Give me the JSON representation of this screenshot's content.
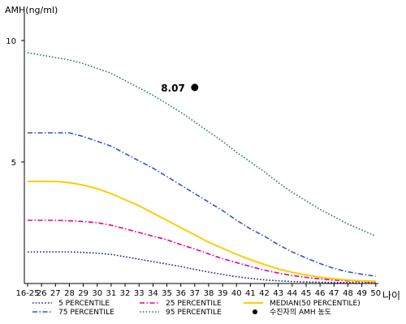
{
  "chart_data": {
    "type": "line",
    "ylabel": "AMH(ng/ml)",
    "xlabel": "나이",
    "ylim": [
      0,
      11
    ],
    "ytick_labels": [
      "5",
      "10"
    ],
    "yticks": [
      5,
      10
    ],
    "categories": [
      "16-25",
      "26",
      "27",
      "28",
      "29",
      "30",
      "31",
      "32",
      "33",
      "34",
      "35",
      "36",
      "37",
      "38",
      "39",
      "40",
      "41",
      "42",
      "43",
      "44",
      "45",
      "46",
      "47",
      "48",
      "49",
      "50"
    ],
    "series": [
      {
        "name": "5 PERCENTILE",
        "color": "#1a237e",
        "dash": "dotted",
        "values": [
          1.3,
          1.3,
          1.3,
          1.3,
          1.28,
          1.25,
          1.2,
          1.1,
          1.0,
          0.9,
          0.8,
          0.7,
          0.58,
          0.47,
          0.37,
          0.28,
          0.21,
          0.15,
          0.11,
          0.08,
          0.06,
          0.05,
          0.04,
          0.04,
          0.03,
          0.03
        ]
      },
      {
        "name": "25 PERCENTILE",
        "color": "#e3008c",
        "dash": "dashdot",
        "values": [
          2.6,
          2.6,
          2.6,
          2.58,
          2.55,
          2.5,
          2.4,
          2.25,
          2.1,
          1.95,
          1.8,
          1.6,
          1.42,
          1.22,
          1.02,
          0.86,
          0.7,
          0.55,
          0.43,
          0.33,
          0.25,
          0.19,
          0.14,
          0.11,
          0.09,
          0.07
        ]
      },
      {
        "name": "MEDIAN(50 PERCENTILE)",
        "color": "#ffcc00",
        "dash": "solid",
        "values": [
          4.2,
          4.2,
          4.2,
          4.15,
          4.05,
          3.9,
          3.7,
          3.45,
          3.2,
          2.9,
          2.6,
          2.3,
          2.0,
          1.7,
          1.45,
          1.2,
          0.98,
          0.78,
          0.6,
          0.46,
          0.35,
          0.26,
          0.19,
          0.14,
          0.11,
          0.09
        ]
      },
      {
        "name": "75 PERCENTILE",
        "color": "#3355cc",
        "dash": "dashdot",
        "values": [
          6.2,
          6.2,
          6.2,
          6.2,
          6.05,
          5.85,
          5.65,
          5.35,
          5.05,
          4.75,
          4.4,
          4.05,
          3.7,
          3.35,
          3.0,
          2.6,
          2.25,
          1.95,
          1.6,
          1.3,
          1.05,
          0.82,
          0.62,
          0.48,
          0.38,
          0.3
        ]
      },
      {
        "name": "95 PERCENTILE",
        "color": "#2e7d4f",
        "dash": "dotted",
        "values": [
          9.5,
          9.4,
          9.3,
          9.2,
          9.05,
          8.85,
          8.65,
          8.35,
          8.05,
          7.75,
          7.4,
          7.05,
          6.65,
          6.25,
          5.85,
          5.4,
          5.0,
          4.6,
          4.15,
          3.75,
          3.4,
          3.05,
          2.75,
          2.45,
          2.2,
          1.95
        ]
      }
    ],
    "point": {
      "name": "수진자의 AMH 농도",
      "x": "37",
      "y": 8.07,
      "label": "8.07",
      "color": "#000000"
    }
  }
}
